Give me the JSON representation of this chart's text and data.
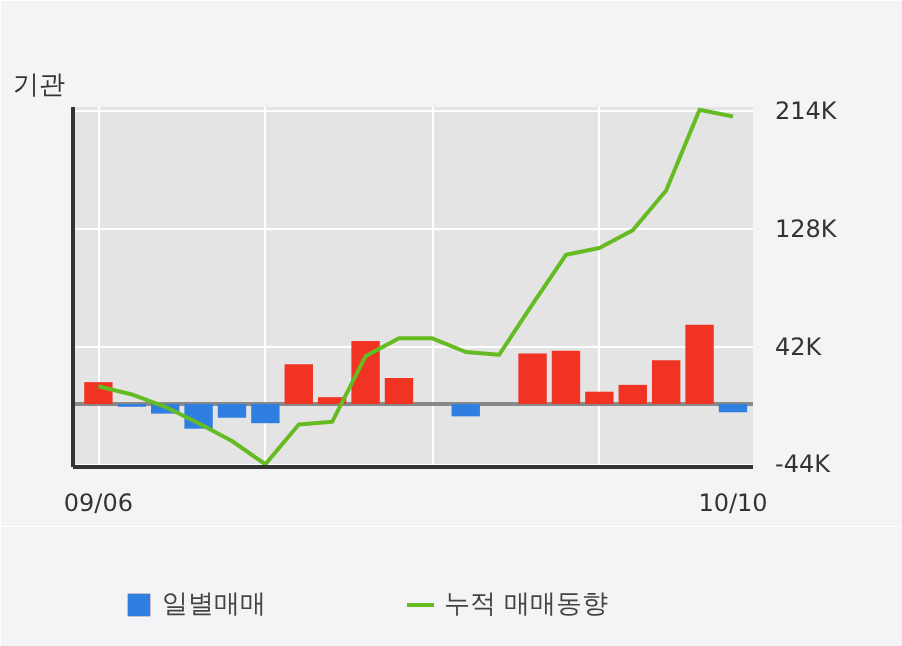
{
  "chart_data": {
    "type": "bar",
    "title": "기관",
    "categories": [
      "09/06",
      null,
      null,
      null,
      null,
      null,
      null,
      null,
      null,
      null,
      null,
      null,
      null,
      null,
      null,
      null,
      null,
      null,
      null,
      "10/10"
    ],
    "series": [
      {
        "name": "일별매매",
        "colors": [
          "#f03322",
          "#2f7fe0",
          "#2f7fe0",
          "#2f7fe0",
          "#2f7fe0",
          "#2f7fe0",
          "#f03322",
          "#f03322",
          "#f03322",
          "#f03322",
          "#f03322",
          "#2f7fe0",
          "#f03322",
          "#f03322",
          "#f03322",
          "#f03322",
          "#f03322",
          "#f03322",
          "#f03322",
          "#2f7fe0"
        ],
        "values": [
          16,
          -2,
          -7,
          -18,
          -10,
          -14,
          29,
          5,
          46,
          19,
          0,
          -9,
          0,
          37,
          39,
          9,
          14,
          32,
          58,
          -6
        ]
      },
      {
        "name": "누적 매매동향",
        "type": "line",
        "color": "#66bb22",
        "values": [
          13,
          7,
          -2,
          -14,
          -27,
          -44,
          -15,
          -13,
          35,
          48,
          48,
          38,
          36,
          73,
          109,
          114,
          127,
          156,
          215,
          210
        ]
      }
    ],
    "ylim": [
      -46,
      217
    ],
    "yticks": [
      {
        "value": 214,
        "label": "214K"
      },
      {
        "value": 128,
        "label": "128K"
      },
      {
        "value": 42,
        "label": "42K"
      },
      {
        "value": -44,
        "label": "-44K"
      }
    ],
    "grid": true,
    "legend": "bottom"
  }
}
